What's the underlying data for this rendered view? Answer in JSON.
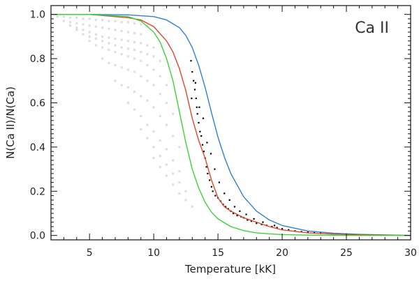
{
  "chart_data": {
    "type": "line",
    "title": "Ca II",
    "xlabel": "Temperature [kK]",
    "ylabel": "N(Ca II)/N(Ca)",
    "xlim": [
      2,
      30
    ],
    "ylim": [
      -0.02,
      1.04
    ],
    "x_ticks": [
      5,
      10,
      15,
      20,
      25,
      30
    ],
    "x_tick_labels": [
      "5",
      "10",
      "15",
      "20",
      "25",
      "30"
    ],
    "y_ticks": [
      0.0,
      0.2,
      0.4,
      0.6,
      0.8,
      1.0
    ],
    "y_tick_labels": [
      "0.0",
      "0.2",
      "0.4",
      "0.6",
      "0.8",
      "1.0"
    ],
    "grid": false,
    "legend": "none",
    "series": [
      {
        "color": "#2f7fd6",
        "x": [
          2,
          5,
          8,
          10,
          11,
          12,
          12.5,
          13,
          13.5,
          14,
          14.5,
          15,
          15.5,
          16,
          17,
          18,
          19,
          20,
          22,
          24,
          26,
          30
        ],
        "y": [
          1.0,
          1.0,
          0.998,
          0.99,
          0.975,
          0.94,
          0.905,
          0.85,
          0.77,
          0.67,
          0.555,
          0.445,
          0.355,
          0.28,
          0.175,
          0.11,
          0.07,
          0.045,
          0.02,
          0.01,
          0.005,
          0.0
        ]
      },
      {
        "color": "#e2452b",
        "x": [
          2,
          5,
          8,
          9,
          10,
          11,
          11.5,
          12,
          12.5,
          13,
          13.5,
          14,
          14.5,
          15,
          15.5,
          16,
          17,
          18,
          19,
          20,
          22,
          24,
          26,
          30
        ],
        "y": [
          1.0,
          1.0,
          0.985,
          0.975,
          0.945,
          0.88,
          0.83,
          0.755,
          0.655,
          0.53,
          0.43,
          0.35,
          0.25,
          0.17,
          0.13,
          0.11,
          0.08,
          0.06,
          0.04,
          0.025,
          0.012,
          0.006,
          0.003,
          0.0
        ]
      },
      {
        "color": "#3ad33a",
        "x": [
          2,
          5,
          8,
          9,
          10,
          10.5,
          11,
          11.5,
          12,
          12.5,
          13,
          13.5,
          14,
          14.5,
          15,
          16,
          17,
          18,
          19,
          20,
          22,
          24,
          26,
          30
        ],
        "y": [
          1.0,
          1.0,
          0.99,
          0.97,
          0.92,
          0.875,
          0.8,
          0.7,
          0.56,
          0.42,
          0.3,
          0.215,
          0.15,
          0.105,
          0.075,
          0.04,
          0.022,
          0.012,
          0.007,
          0.004,
          0.0015,
          0.0005,
          0.0,
          0.0
        ]
      }
    ],
    "scatter": {
      "black_points": {
        "color": "#000000",
        "x": [
          12.9,
          13.0,
          13.1,
          13.2,
          13.3,
          13.35,
          13.4,
          13.5,
          13.6,
          13.7,
          13.8,
          13.9,
          14.0,
          14.1,
          14.2,
          14.35,
          14.5,
          14.6,
          14.8,
          15.0,
          15.2,
          15.4,
          15.6,
          15.8,
          16.0,
          16.2,
          16.5,
          16.8,
          17.0,
          17.3,
          17.6,
          18.0,
          18.4,
          18.8,
          19.2,
          19.6,
          20.0,
          20.5,
          21.0,
          21.5,
          22.0,
          22.5,
          23.0,
          12.95,
          13.25,
          13.55,
          13.85,
          14.15,
          14.45,
          14.75,
          15.1,
          15.5,
          15.9,
          16.3,
          16.7,
          17.2,
          17.8,
          18.5,
          19.4
        ],
        "y": [
          0.79,
          0.74,
          0.7,
          0.66,
          0.62,
          0.58,
          0.55,
          0.51,
          0.47,
          0.45,
          0.41,
          0.38,
          0.35,
          0.31,
          0.28,
          0.25,
          0.22,
          0.2,
          0.18,
          0.17,
          0.155,
          0.14,
          0.13,
          0.12,
          0.11,
          0.1,
          0.09,
          0.085,
          0.08,
          0.07,
          0.065,
          0.055,
          0.05,
          0.045,
          0.04,
          0.035,
          0.03,
          0.025,
          0.02,
          0.017,
          0.014,
          0.012,
          0.01,
          0.62,
          0.69,
          0.58,
          0.53,
          0.42,
          0.37,
          0.3,
          0.24,
          0.19,
          0.16,
          0.13,
          0.11,
          0.095,
          0.075,
          0.06,
          0.045
        ]
      },
      "gray_density": {
        "color": "#8a8a8a",
        "note_free_parameters": false,
        "x": [
          2.5,
          3,
          3.5,
          4,
          4.5,
          5,
          5.5,
          6,
          6.5,
          7,
          7.5,
          8,
          8.5,
          9,
          9.5,
          3,
          3.5,
          4,
          4.5,
          5,
          5.5,
          6,
          6.5,
          7,
          7.5,
          8,
          8.5,
          9,
          3.5,
          4,
          4.5,
          5,
          5.5,
          6,
          6.5,
          7,
          7.5,
          8,
          8.5,
          9,
          9.5,
          10,
          4,
          4.5,
          5,
          5.5,
          6,
          6.5,
          7,
          7.5,
          8,
          8.5,
          9,
          9.5,
          10,
          10.5,
          5,
          5.5,
          6,
          6.5,
          7,
          7.5,
          8,
          8.5,
          9,
          9.5,
          10,
          10.5,
          11,
          6,
          6.5,
          7,
          7.5,
          8,
          8.5,
          9,
          9.5,
          10,
          10.5,
          11,
          11.5,
          7,
          7.5,
          8,
          8.5,
          9,
          9.5,
          10,
          10.5,
          11,
          11.5,
          12,
          8,
          8.5,
          9,
          9.5,
          10,
          10.5,
          11,
          11.5,
          12,
          9,
          9.5,
          10,
          10.5,
          11,
          11.5,
          12,
          12.5,
          10,
          10.5,
          11,
          11.5,
          12,
          12.5,
          13
        ],
        "y": [
          0.99,
          0.99,
          0.985,
          0.985,
          0.98,
          0.98,
          0.975,
          0.975,
          0.97,
          0.97,
          0.965,
          0.965,
          0.96,
          0.955,
          0.95,
          0.97,
          0.965,
          0.96,
          0.955,
          0.95,
          0.945,
          0.94,
          0.935,
          0.93,
          0.925,
          0.92,
          0.915,
          0.91,
          0.95,
          0.94,
          0.93,
          0.92,
          0.91,
          0.9,
          0.895,
          0.89,
          0.885,
          0.88,
          0.875,
          0.87,
          0.86,
          0.85,
          0.93,
          0.91,
          0.9,
          0.89,
          0.88,
          0.87,
          0.86,
          0.85,
          0.845,
          0.84,
          0.83,
          0.82,
          0.81,
          0.79,
          0.88,
          0.86,
          0.85,
          0.84,
          0.83,
          0.82,
          0.81,
          0.8,
          0.79,
          0.77,
          0.75,
          0.72,
          0.68,
          0.8,
          0.78,
          0.77,
          0.76,
          0.75,
          0.74,
          0.72,
          0.7,
          0.68,
          0.64,
          0.6,
          0.55,
          0.7,
          0.68,
          0.67,
          0.65,
          0.63,
          0.61,
          0.58,
          0.54,
          0.5,
          0.45,
          0.4,
          0.6,
          0.57,
          0.54,
          0.5,
          0.47,
          0.43,
          0.39,
          0.34,
          0.29,
          0.48,
          0.44,
          0.4,
          0.36,
          0.32,
          0.28,
          0.24,
          0.2,
          0.35,
          0.31,
          0.27,
          0.23,
          0.19,
          0.16,
          0.13
        ]
      }
    }
  }
}
